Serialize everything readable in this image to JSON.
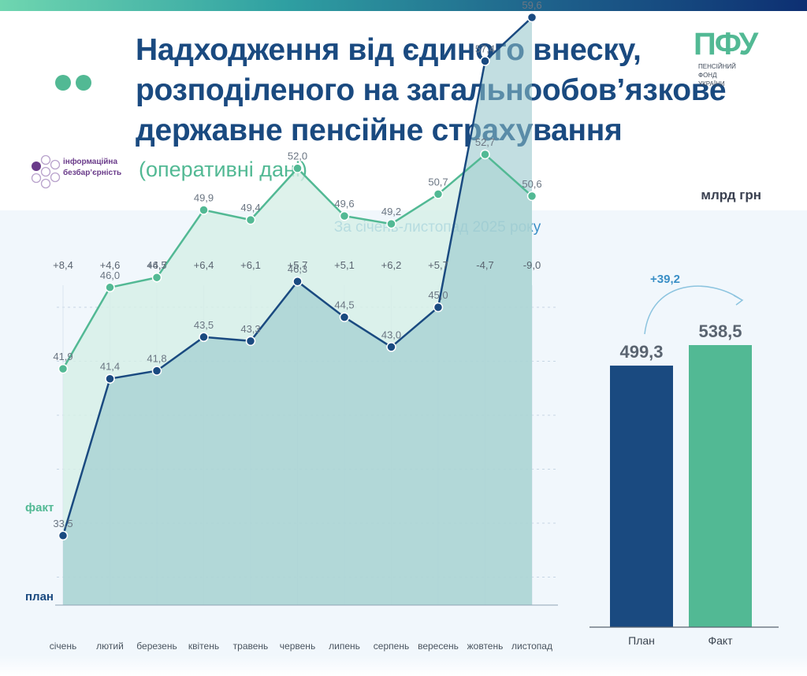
{
  "header": {
    "title_lines": [
      "Надходження від єдиного внеску,",
      "розподіленого на загальнообов’язкове",
      "державне пенсійне страхування"
    ],
    "subtitle": "(оперативні дані)",
    "logo_mark": "ПФУ",
    "logo_text": [
      "ПЕНСІЙНИЙ",
      "ФОНД",
      "УКРАЇНИ"
    ],
    "badge_text": [
      "інформаційна",
      "безбар’єрність"
    ],
    "unit": "млрд грн"
  },
  "colors": {
    "plan": "#1a4a80",
    "fact": "#52b994",
    "accent": "#3a8fc6",
    "panel": "#f1f7fc"
  },
  "chart_data": [
    {
      "type": "line",
      "title": "За січень-листопад 2025 року",
      "categories": [
        "січень",
        "лютий",
        "березень",
        "квітень",
        "травень",
        "червень",
        "липень",
        "серпень",
        "вересень",
        "жовтень",
        "листопад"
      ],
      "series": [
        {
          "name": "факт",
          "values": [
            41.9,
            46.0,
            46.5,
            49.9,
            49.4,
            52.0,
            49.6,
            49.2,
            50.7,
            52.7,
            50.6
          ],
          "labels": [
            "41,9",
            "46,0",
            "46,5",
            "49,9",
            "49,4",
            "52,0",
            "49,6",
            "49,2",
            "50,7",
            "52,7",
            "50,6"
          ]
        },
        {
          "name": "план",
          "values": [
            33.5,
            41.4,
            41.8,
            43.5,
            43.3,
            46.3,
            44.5,
            43.0,
            45.0,
            57.4,
            59.6
          ],
          "labels": [
            "33,5",
            "41,4",
            "41,8",
            "43,5",
            "43,3",
            "46,3",
            "44,5",
            "43,0",
            "45,0",
            "57,4",
            "59,6"
          ]
        }
      ],
      "differences": [
        "+8,4",
        "+4,6",
        "+4,7",
        "+6,4",
        "+6,1",
        "+5,7",
        "+5,1",
        "+6,2",
        "+5,7",
        "-4,7",
        "-9,0"
      ],
      "ylim": [
        30,
        62
      ],
      "grid": "horizontal dashed"
    },
    {
      "type": "bar",
      "categories": [
        "План",
        "Факт"
      ],
      "values": [
        499.3,
        538.5
      ],
      "labels": [
        "499,3",
        "538,5"
      ],
      "difference": "+39,2",
      "ylim": [
        0,
        538.5
      ]
    }
  ]
}
